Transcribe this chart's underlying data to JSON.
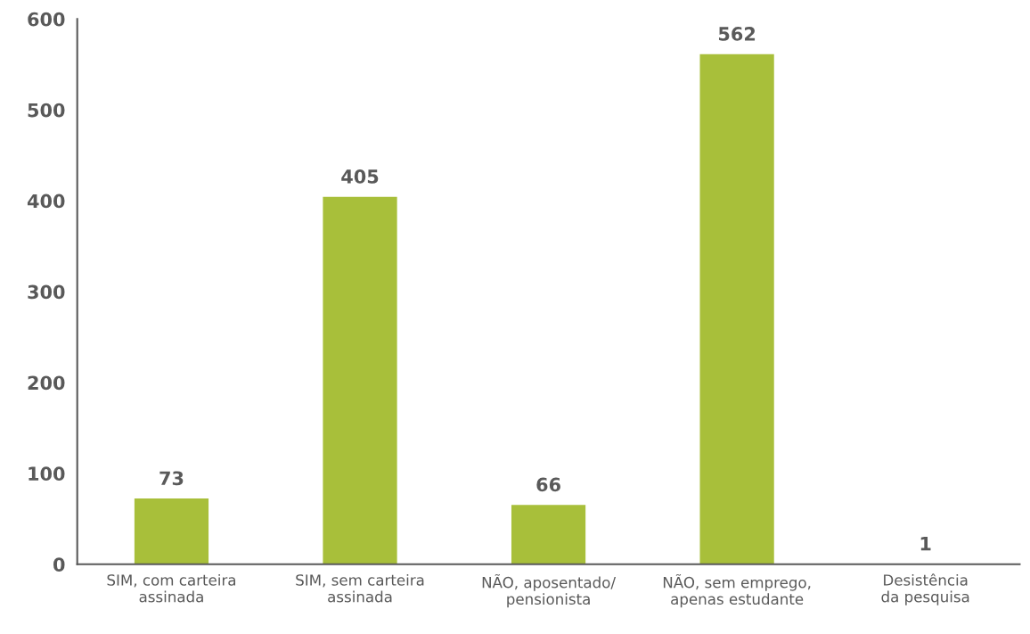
{
  "chart_data": {
    "type": "bar",
    "categories": [
      "SIM, com carteira\nassinada",
      "SIM, sem carteira\nassinada",
      "NÃO, aposentado/\npensionista",
      "NÃO, sem emprego,\napenas estudante",
      "Desistência\nda pesquisa"
    ],
    "values": [
      73,
      405,
      66,
      562,
      1
    ],
    "color": "#a8bf3a",
    "ylim": [
      0,
      600
    ],
    "yticks": [
      0,
      100,
      200,
      300,
      400,
      500,
      600
    ],
    "data_labels": true,
    "grid": false
  }
}
